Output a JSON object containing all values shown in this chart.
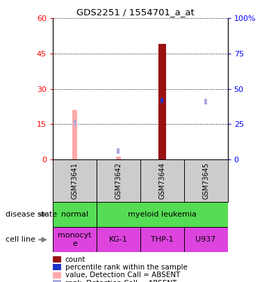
{
  "title": "GDS2251 / 1554701_a_at",
  "samples": [
    "GSM73641",
    "GSM73642",
    "GSM73644",
    "GSM73645"
  ],
  "count_values": [
    0,
    0,
    49,
    0
  ],
  "rank_values": [
    0,
    0,
    40,
    0
  ],
  "count_absent": [
    21,
    1,
    0,
    0
  ],
  "rank_absent": [
    28,
    8,
    0,
    43
  ],
  "ylim_left": [
    0,
    60
  ],
  "ylim_right": [
    0,
    100
  ],
  "yticks_left": [
    0,
    15,
    30,
    45,
    60
  ],
  "ytick_labels_left": [
    "0",
    "15",
    "30",
    "45",
    "60"
  ],
  "yticks_right": [
    0,
    25,
    50,
    75,
    100
  ],
  "ytick_labels_right": [
    "0",
    "25",
    "50",
    "75",
    "100%"
  ],
  "disease_color": "#55dd55",
  "cell_line_color": "#dd44dd",
  "sample_bg_color": "#cccccc",
  "bar_color_count": "#991111",
  "bar_color_rank": "#2233cc",
  "bar_color_absent_count": "#ffaaaa",
  "bar_color_absent_rank": "#aaaadd",
  "legend_items": [
    {
      "label": "count",
      "color": "#991111"
    },
    {
      "label": "percentile rank within the sample",
      "color": "#2233cc"
    },
    {
      "label": "value, Detection Call = ABSENT",
      "color": "#ffaaaa"
    },
    {
      "label": "rank, Detection Call = ABSENT",
      "color": "#aaaadd"
    }
  ]
}
